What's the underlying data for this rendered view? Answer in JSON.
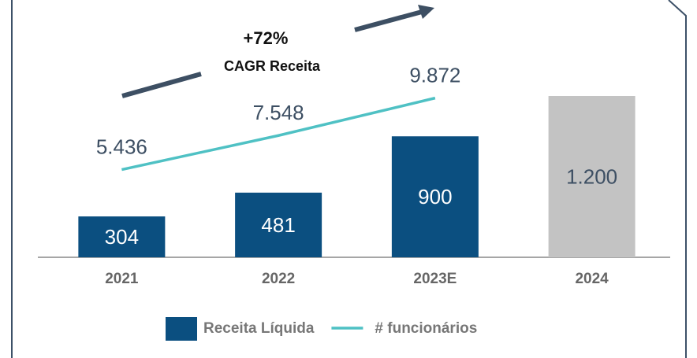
{
  "chart_data": {
    "type": "bar",
    "categories": [
      "2021",
      "2022",
      "2023E",
      "2024"
    ],
    "series": [
      {
        "name": "Receita Líquida",
        "type": "bar",
        "colors": [
          "#0b4f80",
          "#0b4f80",
          "#0b4f80",
          "#c3c3c3"
        ],
        "values": [
          304,
          481,
          900,
          1200
        ],
        "value_labels": [
          "304",
          "481",
          "900",
          "1.200"
        ]
      },
      {
        "name": "# funcionários",
        "type": "line",
        "axis": "y2",
        "color": "#4fc1c4",
        "values": [
          5436,
          7548,
          9872,
          null
        ],
        "value_labels": [
          "5.436",
          "7.548",
          "9.872",
          null
        ]
      }
    ],
    "ylim": [
      0,
      1200
    ],
    "y2lim": [
      0,
      10000
    ],
    "annotations": [
      {
        "text": "+72%"
      },
      {
        "text": "CAGR Receita"
      }
    ],
    "legend": "bottom"
  }
}
